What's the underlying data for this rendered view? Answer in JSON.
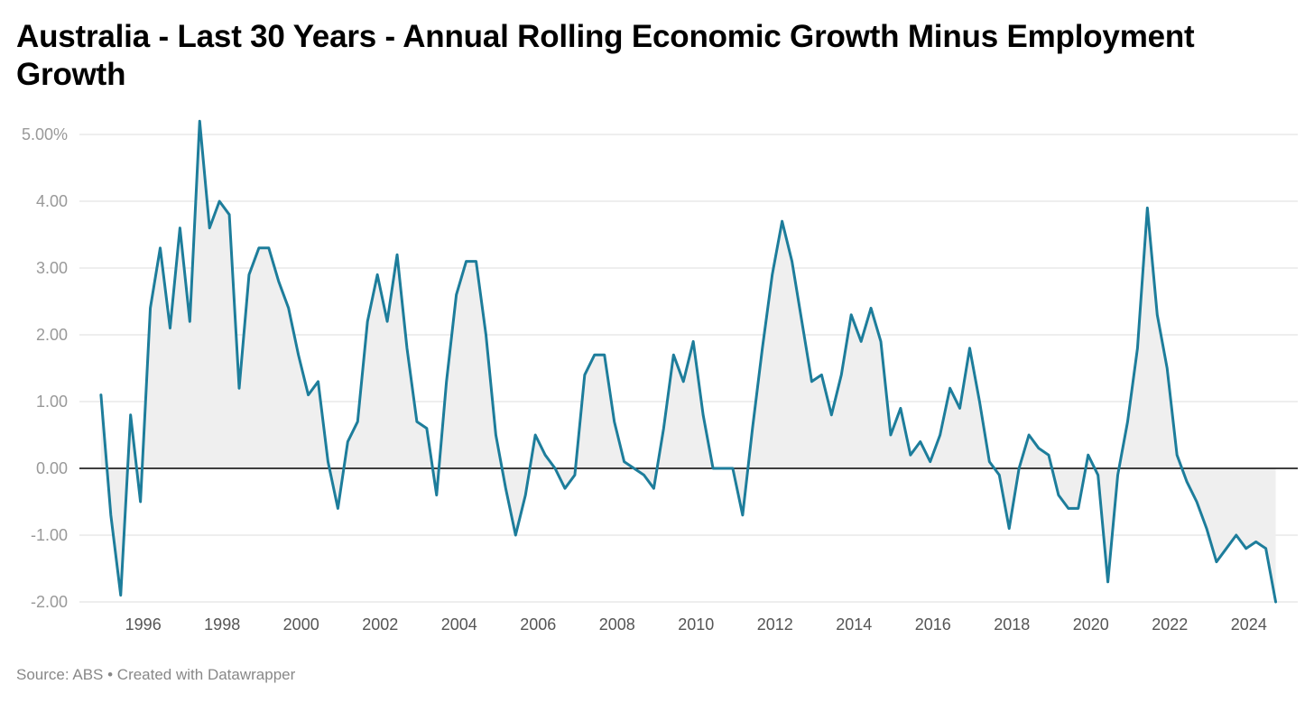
{
  "chart_data": {
    "type": "area",
    "title": "Australia - Last 30 Years - Annual Rolling Economic Growth Minus Employment Growth",
    "xlabel": "",
    "ylabel": "",
    "x_ticks": [
      "1996",
      "1998",
      "2000",
      "2002",
      "2004",
      "2006",
      "2008",
      "2010",
      "2012",
      "2014",
      "2016",
      "2018",
      "2020",
      "2022",
      "2024"
    ],
    "y_ticks": [
      "5.00%",
      "4.00",
      "3.00",
      "2.00",
      "1.00",
      "0.00",
      "-1.00",
      "-2.00"
    ],
    "y_tick_values": [
      5,
      4,
      3,
      2,
      1,
      0,
      -1,
      -2
    ],
    "xlim": [
      1994.75,
      2024.85
    ],
    "ylim": [
      -2,
      5.3
    ],
    "grid": true,
    "series": [
      {
        "x": [
          1994.93,
          1995.18,
          1995.43,
          1995.68,
          1995.93,
          1996.18,
          1996.43,
          1996.68,
          1996.93,
          1997.18,
          1997.43,
          1997.68,
          1997.93,
          1998.18,
          1998.43,
          1998.68,
          1998.93,
          1999.18,
          1999.43,
          1999.68,
          1999.93,
          2000.18,
          2000.43,
          2000.68,
          2000.93,
          2001.18,
          2001.43,
          2001.68,
          2001.93,
          2002.18,
          2002.43,
          2002.68,
          2002.93,
          2003.18,
          2003.43,
          2003.68,
          2003.93,
          2004.18,
          2004.43,
          2004.68,
          2004.93,
          2005.18,
          2005.43,
          2005.68,
          2005.93,
          2006.18,
          2006.43,
          2006.68,
          2006.93,
          2007.18,
          2007.43,
          2007.68,
          2007.93,
          2008.18,
          2008.43,
          2008.68,
          2008.93,
          2009.18,
          2009.43,
          2009.68,
          2009.93,
          2010.18,
          2010.43,
          2010.68,
          2010.93,
          2011.18,
          2011.43,
          2011.68,
          2011.93,
          2012.18,
          2012.43,
          2012.68,
          2012.93,
          2013.18,
          2013.43,
          2013.68,
          2013.93,
          2014.18,
          2014.43,
          2014.68,
          2014.93,
          2015.18,
          2015.43,
          2015.68,
          2015.93,
          2016.18,
          2016.43,
          2016.68,
          2016.93,
          2017.18,
          2017.43,
          2017.68,
          2017.93,
          2018.18,
          2018.43,
          2018.68,
          2018.93,
          2019.18,
          2019.43,
          2019.68,
          2019.93,
          2020.18,
          2020.43,
          2020.68,
          2020.93,
          2021.18,
          2021.43,
          2021.68,
          2021.93,
          2022.18,
          2022.43,
          2022.68,
          2022.93,
          2023.18,
          2023.43,
          2023.68,
          2023.93,
          2024.18,
          2024.43,
          2024.68
        ],
        "values": [
          1.1,
          -0.7,
          -1.9,
          0.8,
          -0.5,
          2.4,
          3.3,
          2.1,
          3.6,
          2.2,
          5.2,
          3.6,
          4.0,
          3.8,
          1.2,
          2.9,
          3.3,
          3.3,
          2.8,
          2.4,
          1.7,
          1.1,
          1.3,
          0.1,
          -0.6,
          0.4,
          0.7,
          2.2,
          2.9,
          2.2,
          3.2,
          1.8,
          0.7,
          0.6,
          -0.4,
          1.3,
          2.6,
          3.1,
          3.1,
          2.0,
          0.5,
          -0.3,
          -1.0,
          -0.4,
          0.5,
          0.2,
          0.0,
          -0.3,
          -0.1,
          1.4,
          1.7,
          1.7,
          0.7,
          0.1,
          0.0,
          -0.1,
          -0.3,
          0.6,
          1.7,
          1.3,
          1.9,
          0.8,
          0.0,
          0.0,
          0.0,
          -0.7,
          0.6,
          1.8,
          2.9,
          3.7,
          3.1,
          2.2,
          1.3,
          1.4,
          0.8,
          1.4,
          2.3,
          1.9,
          2.4,
          1.9,
          0.5,
          0.9,
          0.2,
          0.4,
          0.1,
          0.5,
          1.2,
          0.9,
          1.8,
          1.0,
          0.1,
          -0.1,
          -0.9,
          0.0,
          0.5,
          0.3,
          0.2,
          -0.4,
          -0.6,
          -0.6,
          0.2,
          -0.1,
          -1.7,
          -0.1,
          0.7,
          1.8,
          3.9,
          2.3,
          1.5,
          0.2,
          -0.2,
          -0.5,
          -0.9,
          -1.4,
          -1.2,
          -1.0,
          -1.2,
          -1.1,
          -1.2,
          -2.0
        ]
      }
    ],
    "line_color": "#1d7d9b",
    "fill_color": "#efefef",
    "zero_line_color": "#000000",
    "grid_color": "#dddddd",
    "source": "Source: ABS • Created with Datawrapper"
  }
}
